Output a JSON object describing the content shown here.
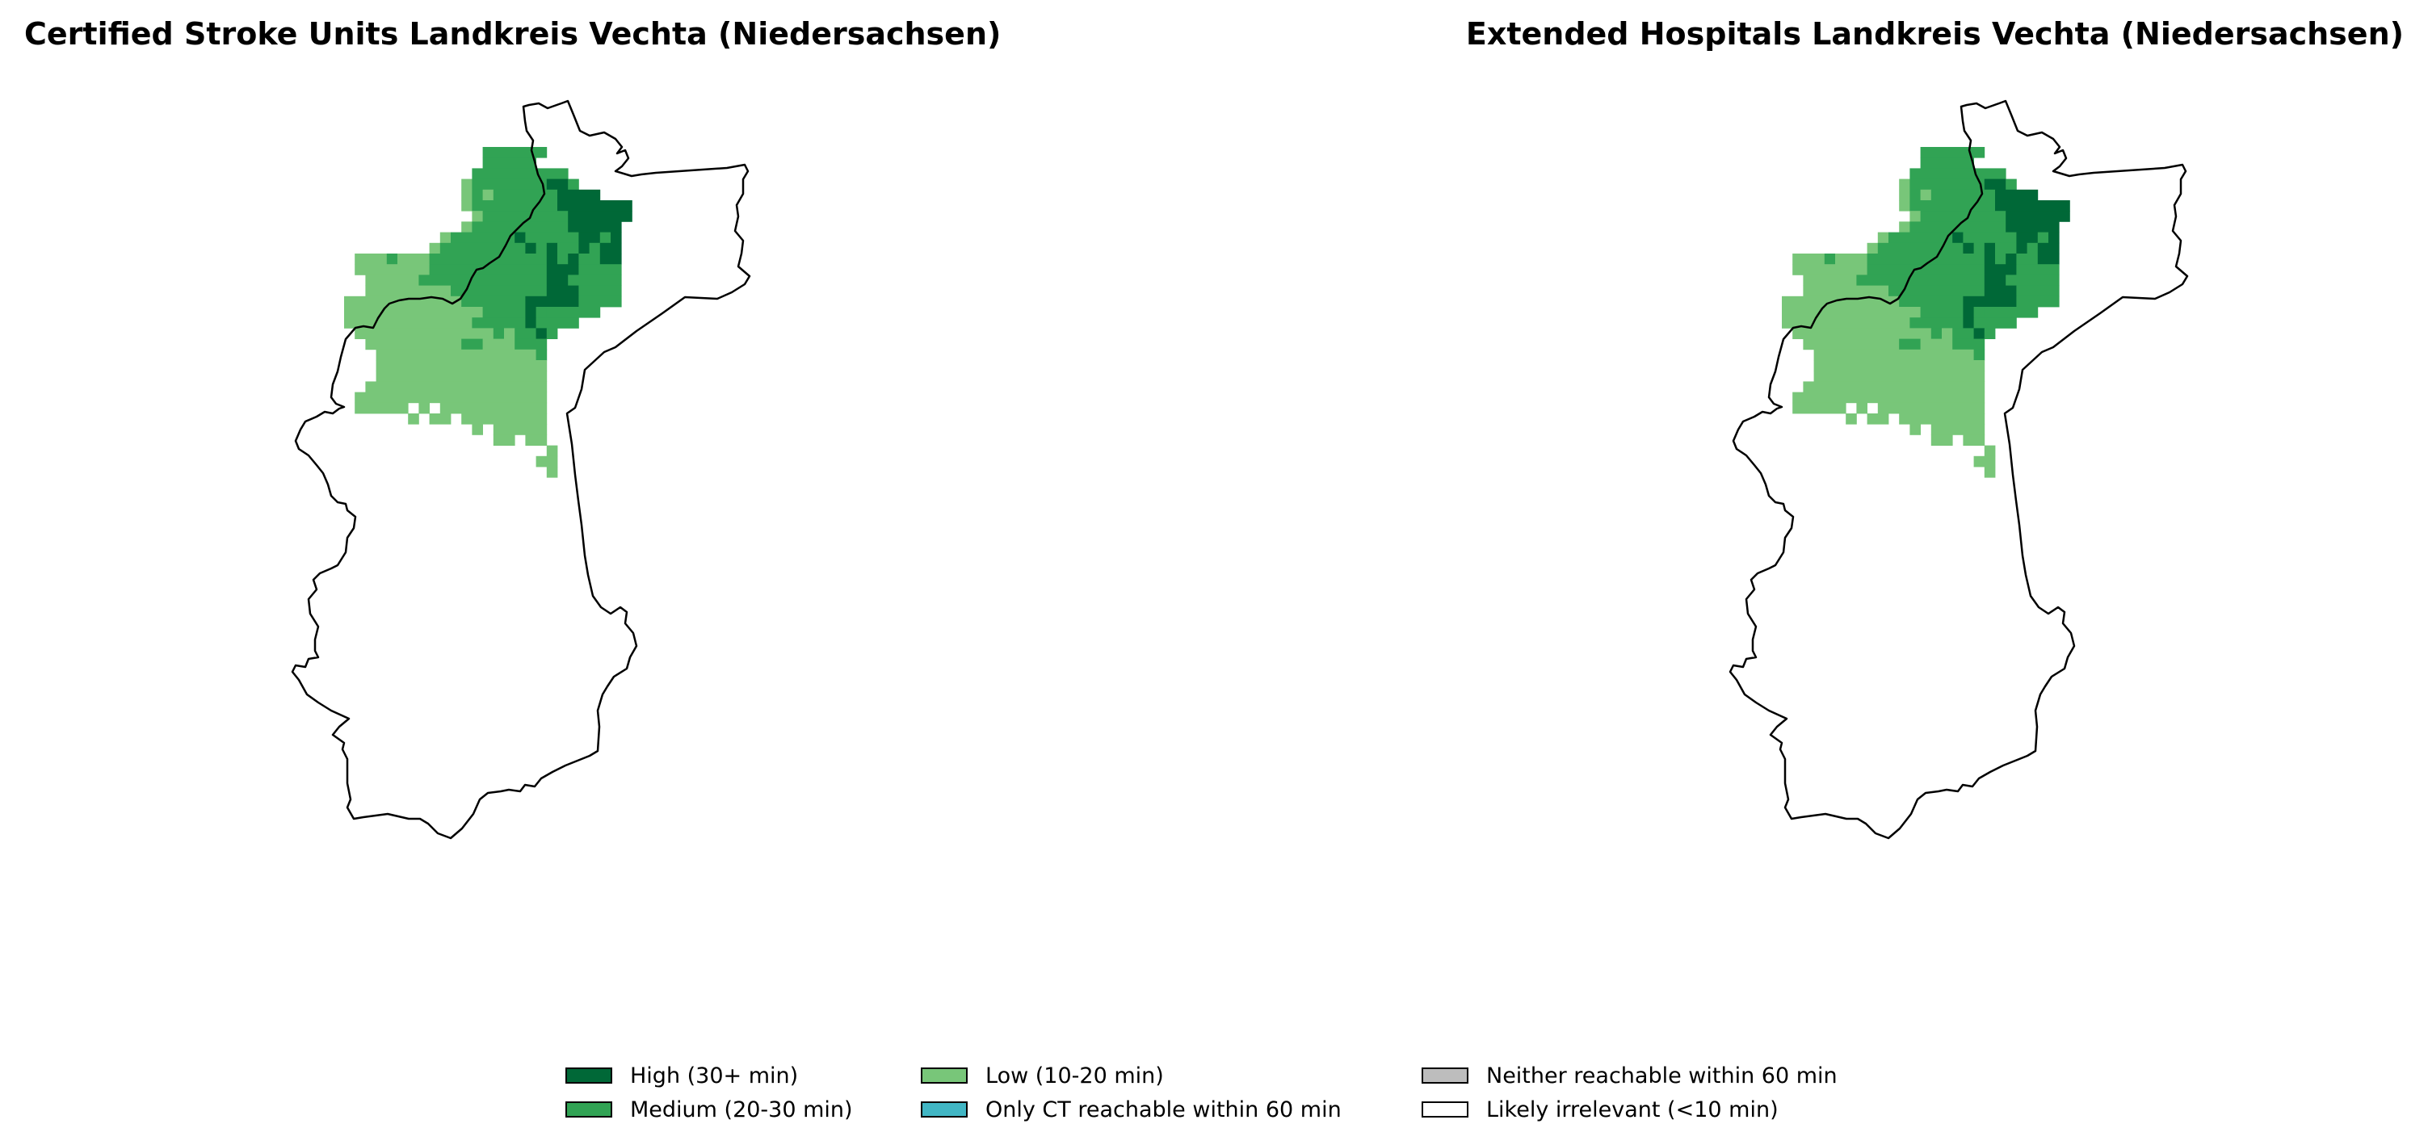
{
  "maps": [
    {
      "title": "Certified Stroke Units Landkreis Vechta (Niedersachsen)"
    },
    {
      "title": "Extended Hospitals Landkreis Vechta (Niedersachsen)"
    }
  ],
  "legend": {
    "items": [
      {
        "label": "High (30+ min)",
        "color": "#006837"
      },
      {
        "label": "Medium (20-30 min)",
        "color": "#31a354"
      },
      {
        "label": "Low (10-20 min)",
        "color": "#78c679"
      },
      {
        "label": "Only CT reachable within 60 min",
        "color": "#41b6c4"
      },
      {
        "label": "Neither reachable within 60 min",
        "color": "#bdbdbd"
      },
      {
        "label": "Likely irrelevant (<10 min)",
        "color": "#ffffff"
      }
    ]
  },
  "colors": {
    "boundary": "#000000"
  }
}
